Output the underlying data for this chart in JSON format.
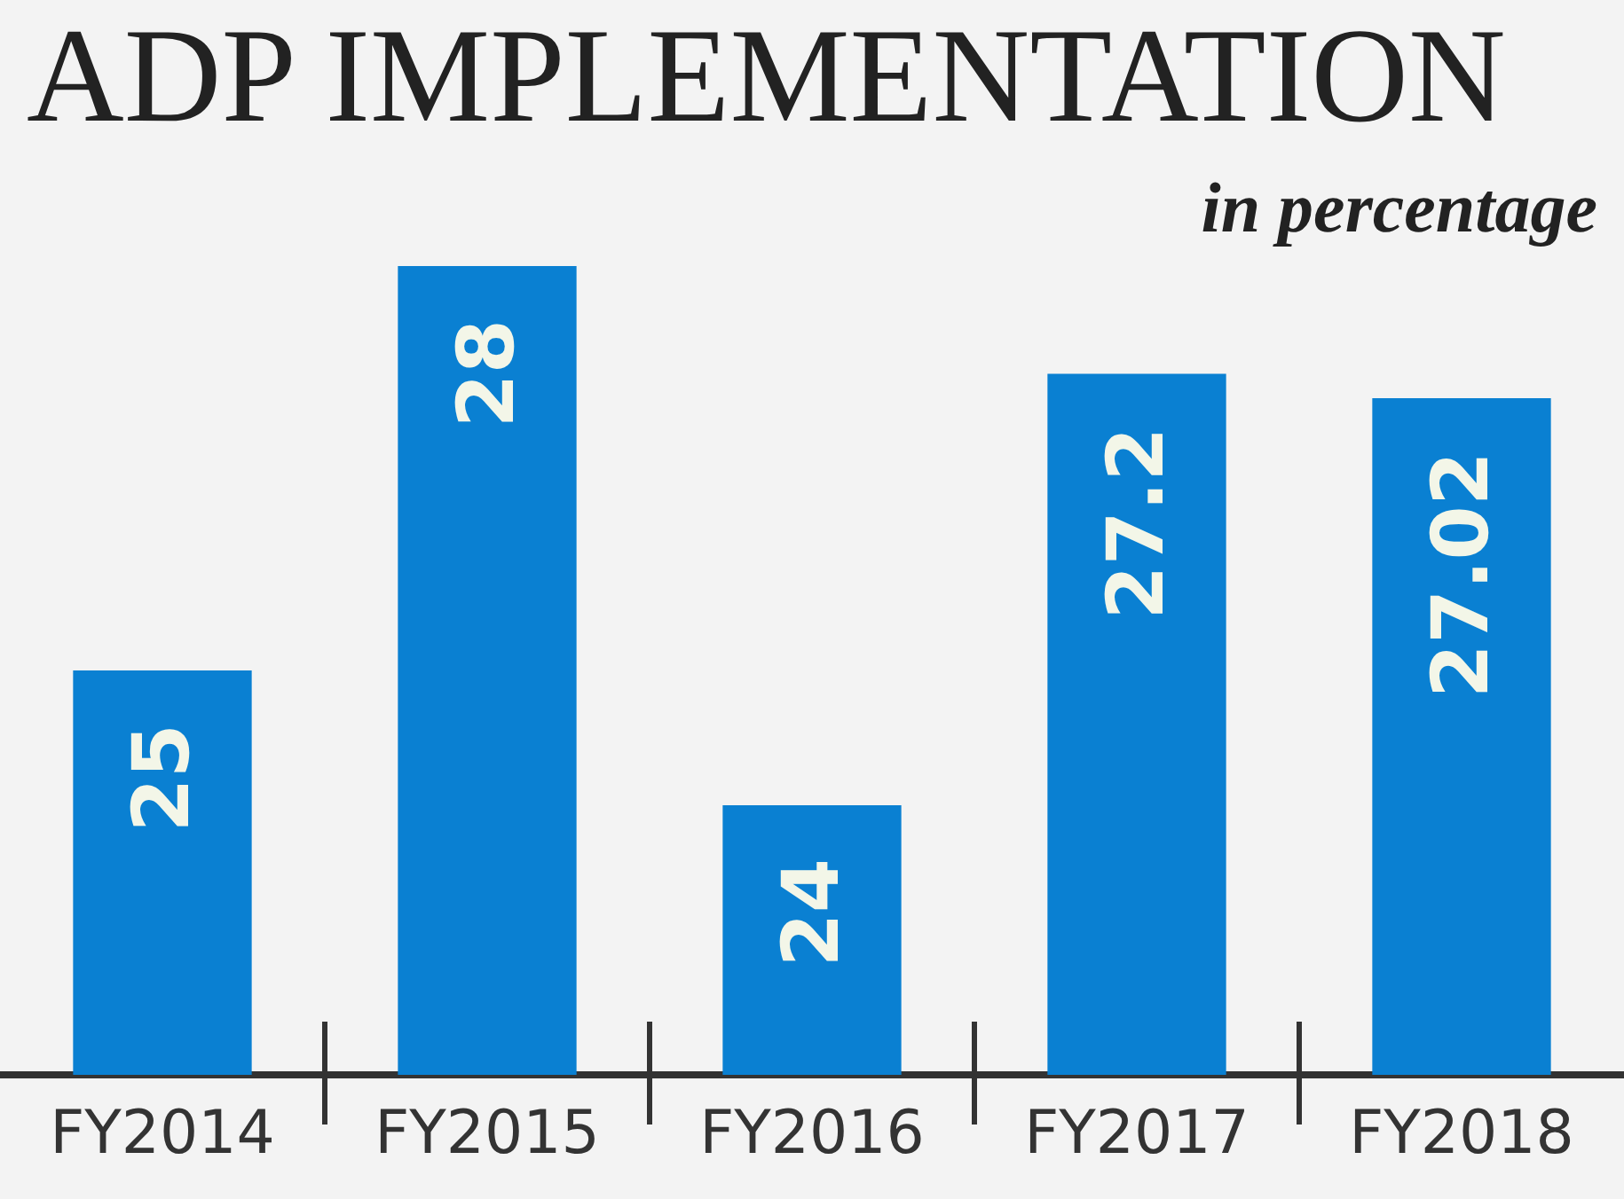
{
  "chart_data": {
    "type": "bar",
    "title": "ADP IMPLEMENTATION",
    "subtitle": "in percentage",
    "categories": [
      "FY2014",
      "FY2015",
      "FY2016",
      "FY2017",
      "FY2018"
    ],
    "values": [
      25,
      28,
      24,
      27.2,
      27.02
    ],
    "color": "#0a80d2",
    "ylim": [
      22,
      28
    ],
    "tick_labels": "x",
    "grid": false,
    "data_labels": true
  }
}
